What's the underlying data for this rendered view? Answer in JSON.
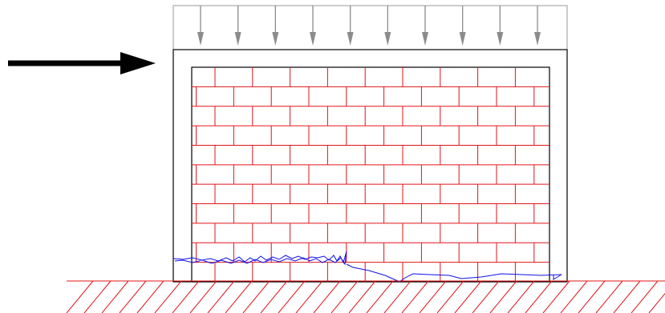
{
  "diagram": {
    "subject": "masonry-infilled-frame",
    "lateral_load": {
      "direction": "right",
      "icon": "arrow-right-icon",
      "color": "#000000"
    },
    "vertical_load": {
      "arrow_count": 10,
      "direction": "down",
      "icon": "arrow-down-icon",
      "color": "#8c8c8c",
      "box_color": "#9a9a9a"
    },
    "frame": {
      "color": "#000000"
    },
    "brick_wall": {
      "courses": 11,
      "color": "#e0141a"
    },
    "crack_path": {
      "color": "#1010e8"
    },
    "ground": {
      "hatch_color": "#e0141a"
    }
  }
}
